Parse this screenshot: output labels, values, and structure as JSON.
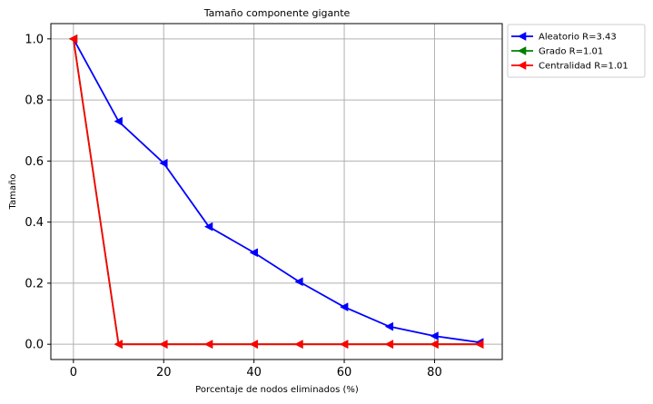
{
  "chart_data": {
    "type": "line",
    "title": "Tamaño componente gigante",
    "xlabel": "Porcentaje de nodos eliminados (%)",
    "ylabel": "Tamaño",
    "xlim": [
      -5,
      95
    ],
    "ylim": [
      -0.05,
      1.05
    ],
    "x_ticks": [
      0,
      20,
      40,
      60,
      80
    ],
    "y_ticks": [
      0.0,
      0.2,
      0.4,
      0.6,
      0.8,
      1.0
    ],
    "x_tick_labels": [
      "0",
      "20",
      "40",
      "60",
      "80"
    ],
    "y_tick_labels": [
      "0.0",
      "0.2",
      "0.4",
      "0.6",
      "0.8",
      "1.0"
    ],
    "grid": true,
    "legend_position": "outside-top-right",
    "marker": "triangle-left",
    "x": [
      0,
      10,
      20,
      30,
      40,
      50,
      60,
      70,
      80,
      90
    ],
    "series": [
      {
        "name": "Aleatorio R=3.43",
        "color": "#0000ff",
        "values": [
          1.0,
          0.73,
          0.593,
          0.385,
          0.3,
          0.205,
          0.122,
          0.058,
          0.027,
          0.006
        ]
      },
      {
        "name": "Grado R=1.01",
        "color": "#008000",
        "values": [
          1.0,
          0.0,
          0.0,
          0.0,
          0.0,
          0.0,
          0.0,
          0.0,
          0.0,
          0.0
        ]
      },
      {
        "name": "Centralidad R=1.01",
        "color": "#ff0000",
        "values": [
          1.0,
          0.0,
          0.0,
          0.0,
          0.0,
          0.0,
          0.0,
          0.0,
          0.0,
          0.0
        ]
      }
    ]
  }
}
